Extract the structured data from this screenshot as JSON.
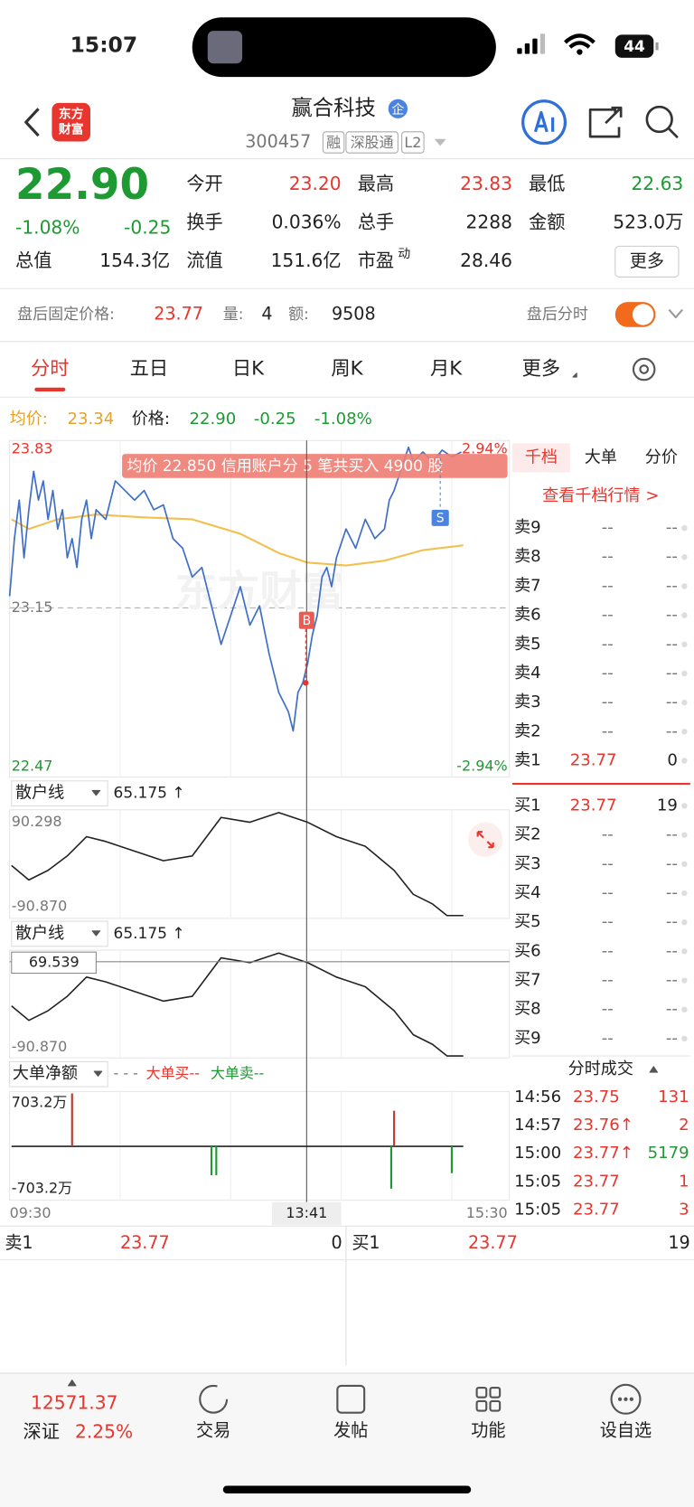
{
  "status_bar": {
    "time": "15:07",
    "battery": "44"
  },
  "header": {
    "logo": [
      "东方",
      "财富"
    ],
    "title": "赢合科技",
    "badge": "企",
    "code": "300457",
    "tags": [
      "融",
      "深股通",
      "L2"
    ]
  },
  "quote": {
    "price": "22.90",
    "change_pct": "-1.08%",
    "change": "-0.25",
    "fields": [
      {
        "label": "今开",
        "value": "23.20"
      },
      {
        "label": "最高",
        "value": "23.83"
      },
      {
        "label": "最低",
        "value": "22.63"
      },
      {
        "label": "换手",
        "value": "0.036%"
      },
      {
        "label": "总手",
        "value": "2288"
      },
      {
        "label": "金额",
        "value": "523.0万"
      },
      {
        "label": "总值",
        "value": "154.3亿"
      },
      {
        "label": "流值",
        "value": "151.6亿"
      },
      {
        "label": "市盈",
        "sup": "动",
        "value": "28.46"
      }
    ],
    "more": "更多"
  },
  "after_hours": {
    "label": "盘后固定价格:",
    "price": "23.77",
    "vol_label": "量:",
    "vol": "4",
    "amt_label": "额:",
    "amt": "9508",
    "toggle_label": "盘后分时"
  },
  "tabs": [
    "分时",
    "五日",
    "日K",
    "周K",
    "月K",
    "更多"
  ],
  "avg_line": {
    "avg_label": "均价:",
    "avg": "23.34",
    "price_label": "价格:",
    "price": "22.90",
    "change": "-0.25",
    "pct": "-1.08%"
  },
  "chart": {
    "y_top": "23.83",
    "y_mid": "23.15",
    "y_bottom": "22.47",
    "pct_top": "2.94%",
    "pct_bottom": "-2.94%",
    "banner": "均价 22.850  信用账户分 5 笔共买入 4900 股",
    "buy_marker": "B",
    "sell_marker": "S",
    "watermark": "东方财富"
  },
  "indicator1": {
    "name": "散户线",
    "value": "65.175 ↑",
    "top": "90.298",
    "bottom": "-90.870"
  },
  "indicator2": {
    "name": "散户线",
    "value": "65.175 ↑",
    "cursor": "69.539",
    "bottom": "-90.870"
  },
  "indicator3": {
    "name": "大单净额",
    "legend_prefix": "- - -",
    "legend_buy": "大单买--",
    "legend_sell": "大单卖--",
    "top": "703.2万",
    "bottom": "-703.2万"
  },
  "x_axis": [
    "09:30",
    "13:41",
    "15:30"
  ],
  "order_book": {
    "tabs": [
      "千档",
      "大单",
      "分价"
    ],
    "link": "查看千档行情 >",
    "sells": [
      {
        "label": "卖9",
        "price": "--",
        "vol": "--"
      },
      {
        "label": "卖8",
        "price": "--",
        "vol": "--"
      },
      {
        "label": "卖7",
        "price": "--",
        "vol": "--"
      },
      {
        "label": "卖6",
        "price": "--",
        "vol": "--"
      },
      {
        "label": "卖5",
        "price": "--",
        "vol": "--"
      },
      {
        "label": "卖4",
        "price": "--",
        "vol": "--"
      },
      {
        "label": "卖3",
        "price": "--",
        "vol": "--"
      },
      {
        "label": "卖2",
        "price": "--",
        "vol": "--"
      },
      {
        "label": "卖1",
        "price": "23.77",
        "vol": "0"
      }
    ],
    "buys": [
      {
        "label": "买1",
        "price": "23.77",
        "vol": "19"
      },
      {
        "label": "买2",
        "price": "--",
        "vol": "--"
      },
      {
        "label": "买3",
        "price": "--",
        "vol": "--"
      },
      {
        "label": "买4",
        "price": "--",
        "vol": "--"
      },
      {
        "label": "买5",
        "price": "--",
        "vol": "--"
      },
      {
        "label": "买6",
        "price": "--",
        "vol": "--"
      },
      {
        "label": "买7",
        "price": "--",
        "vol": "--"
      },
      {
        "label": "买8",
        "price": "--",
        "vol": "--"
      },
      {
        "label": "买9",
        "price": "--",
        "vol": "--"
      }
    ]
  },
  "trades": {
    "title": "分时成交",
    "rows": [
      {
        "time": "14:56",
        "price": "23.75",
        "vol": "131"
      },
      {
        "time": "14:57",
        "price": "23.76↑",
        "vol": "2"
      },
      {
        "time": "15:00",
        "price": "23.77↑",
        "vol": "5179"
      },
      {
        "time": "15:05",
        "price": "23.77",
        "vol": "1"
      },
      {
        "time": "15:05",
        "price": "23.77",
        "vol": "3"
      }
    ]
  },
  "bottom_quote": {
    "sell": {
      "label": "卖1",
      "price": "23.77",
      "vol": "0"
    },
    "buy": {
      "label": "买1",
      "price": "23.77",
      "vol": "19"
    }
  },
  "nav": {
    "index_value": "12571.37",
    "index_name": "深证",
    "index_pct": "2.25%",
    "items": [
      "交易",
      "发帖",
      "功能",
      "设自选"
    ]
  }
}
